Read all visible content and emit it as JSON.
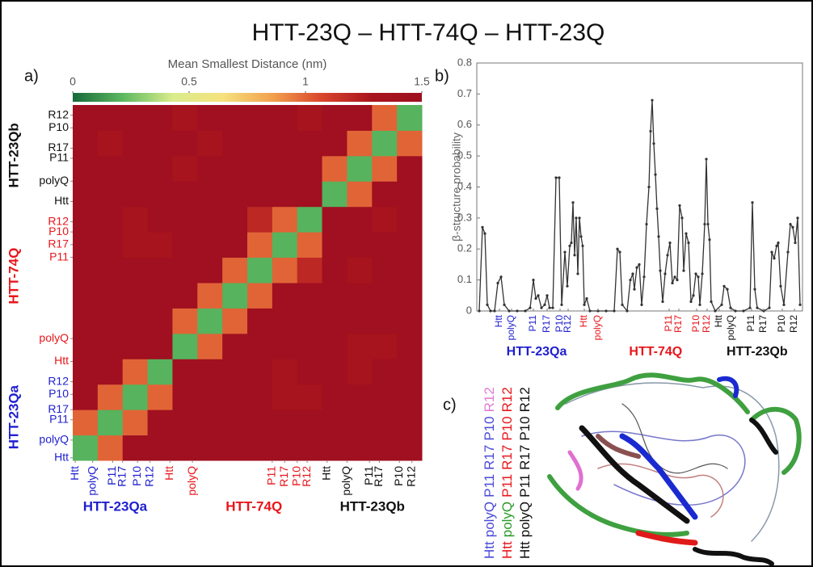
{
  "title": "HTT-23Q – HTT-74Q – HTT-23Q",
  "chart_data": [
    {
      "type": "heatmap",
      "panel_label": "a)",
      "colorbar_title": "Mean Smallest Distance (nm)",
      "zlim": [
        0,
        1.5
      ],
      "zticks": [
        0,
        0.5,
        1,
        1.5
      ],
      "colormap": [
        "#17693a",
        "#5cb860",
        "#d9ec8c",
        "#f6e27e",
        "#f2a14e",
        "#d9452c",
        "#a8141d",
        "#a01020"
      ],
      "lim": [
        0,
        14
      ],
      "groups": [
        {
          "name": "HTT-23Qa",
          "color": "#1f1fd0",
          "ticks": [
            {
              "value": 0.1,
              "label": "Htt"
            },
            {
              "value": 0.8,
              "label": "polyQ"
            },
            {
              "value": 1.6,
              "label": "P11"
            },
            {
              "value": 2.0,
              "label": "R17"
            },
            {
              "value": 2.6,
              "label": "P10"
            },
            {
              "value": 3.1,
              "label": "R12"
            }
          ]
        },
        {
          "name": "HTT-74Q",
          "color": "#e8161b",
          "ticks": [
            {
              "value": 3.9,
              "label": "Htt"
            },
            {
              "value": 4.8,
              "label": "polyQ"
            },
            {
              "value": 8.0,
              "label": "P11"
            },
            {
              "value": 8.5,
              "label": "R17"
            },
            {
              "value": 9.0,
              "label": "P10"
            },
            {
              "value": 9.4,
              "label": "R12"
            }
          ]
        },
        {
          "name": "HTT-23Qb",
          "color": "#111111",
          "ticks": [
            {
              "value": 10.2,
              "label": "Htt"
            },
            {
              "value": 11.0,
              "label": "polyQ"
            },
            {
              "value": 11.9,
              "label": "P11"
            },
            {
              "value": 12.3,
              "label": "R17"
            },
            {
              "value": 13.1,
              "label": "P10"
            },
            {
              "value": 13.6,
              "label": "R12"
            }
          ]
        }
      ],
      "z": [
        [
          0.2,
          1.0,
          1.5,
          1.5,
          1.5,
          1.5,
          1.5,
          1.5,
          1.5,
          1.5,
          1.5,
          1.5,
          1.5,
          1.5
        ],
        [
          1.0,
          0.2,
          1.0,
          1.5,
          1.5,
          1.5,
          1.5,
          1.5,
          1.5,
          1.5,
          1.5,
          1.5,
          1.5,
          1.5
        ],
        [
          1.5,
          1.0,
          0.2,
          1.0,
          1.5,
          1.5,
          1.5,
          1.5,
          1.3,
          1.3,
          1.5,
          1.5,
          1.5,
          1.5
        ],
        [
          1.5,
          1.5,
          1.0,
          0.2,
          1.5,
          1.5,
          1.5,
          1.5,
          1.3,
          1.5,
          1.5,
          1.3,
          1.5,
          1.5
        ],
        [
          1.5,
          1.5,
          1.5,
          1.5,
          0.2,
          1.0,
          1.5,
          1.5,
          1.5,
          1.5,
          1.5,
          1.3,
          1.3,
          1.5
        ],
        [
          1.5,
          1.5,
          1.5,
          1.5,
          1.0,
          0.2,
          1.0,
          1.5,
          1.5,
          1.5,
          1.5,
          1.5,
          1.5,
          1.5
        ],
        [
          1.5,
          1.5,
          1.5,
          1.5,
          1.5,
          1.0,
          0.2,
          1.0,
          1.5,
          1.5,
          1.5,
          1.5,
          1.5,
          1.5
        ],
        [
          1.5,
          1.5,
          1.5,
          1.5,
          1.5,
          1.5,
          1.0,
          0.2,
          1.0,
          1.2,
          1.5,
          1.3,
          1.5,
          1.5
        ],
        [
          1.5,
          1.5,
          1.3,
          1.3,
          1.5,
          1.5,
          1.5,
          1.0,
          0.2,
          1.0,
          1.5,
          1.5,
          1.5,
          1.5
        ],
        [
          1.5,
          1.5,
          1.3,
          1.5,
          1.5,
          1.5,
          1.5,
          1.2,
          1.0,
          0.2,
          1.5,
          1.5,
          1.3,
          1.5
        ],
        [
          1.5,
          1.5,
          1.5,
          1.5,
          1.5,
          1.5,
          1.5,
          1.5,
          1.5,
          1.5,
          0.2,
          1.0,
          1.5,
          1.5
        ],
        [
          1.5,
          1.5,
          1.5,
          1.5,
          1.3,
          1.5,
          1.5,
          1.5,
          1.5,
          1.5,
          1.0,
          0.2,
          1.0,
          1.5
        ],
        [
          1.5,
          1.3,
          1.5,
          1.5,
          1.5,
          1.3,
          1.5,
          1.5,
          1.5,
          1.5,
          1.5,
          1.0,
          0.2,
          1.0
        ],
        [
          1.5,
          1.5,
          1.5,
          1.5,
          1.3,
          1.5,
          1.5,
          1.5,
          1.5,
          1.3,
          1.5,
          1.5,
          1.0,
          0.2
        ]
      ]
    },
    {
      "type": "line",
      "panel_label": "b)",
      "y_label": "β-structure probability",
      "color": "#333333",
      "xlim": [
        0,
        403
      ],
      "ylim": [
        0,
        0.8
      ],
      "yticks": [
        0,
        0.1,
        0.2,
        0.3,
        0.4,
        0.5,
        0.6,
        0.7,
        0.8
      ],
      "groups": [
        {
          "name": "HTT-23Qa",
          "color": "#1f1fd0",
          "ticks": [
            {
              "value": 28,
              "label": "Htt"
            },
            {
              "value": 43,
              "label": "polyQ"
            },
            {
              "value": 70,
              "label": "P11"
            },
            {
              "value": 87,
              "label": "R17"
            },
            {
              "value": 103,
              "label": "P10"
            },
            {
              "value": 113,
              "label": "R12"
            }
          ]
        },
        {
          "name": "HTT-74Q",
          "color": "#e8161b",
          "ticks": [
            {
              "value": 133,
              "label": "Htt"
            },
            {
              "value": 150,
              "label": "polyQ"
            },
            {
              "value": 238,
              "label": "P11"
            },
            {
              "value": 250,
              "label": "R17"
            },
            {
              "value": 272,
              "label": "P10"
            },
            {
              "value": 285,
              "label": "R12"
            }
          ]
        },
        {
          "name": "HTT-23Qb",
          "color": "#111111",
          "ticks": [
            {
              "value": 300,
              "label": "Htt"
            },
            {
              "value": 315,
              "label": "polyQ"
            },
            {
              "value": 340,
              "label": "P11"
            },
            {
              "value": 355,
              "label": "R17"
            },
            {
              "value": 378,
              "label": "P10"
            },
            {
              "value": 393,
              "label": "R12"
            }
          ]
        }
      ],
      "x": [
        3,
        7,
        10,
        13,
        17,
        22,
        26,
        30,
        34,
        40,
        50,
        60,
        66,
        70,
        73,
        76,
        80,
        84,
        87,
        90,
        94,
        98,
        102,
        105,
        109,
        112,
        115,
        117,
        119,
        121,
        123,
        125,
        127,
        129,
        131,
        133,
        136,
        140,
        150,
        160,
        170,
        174,
        177,
        180,
        186,
        190,
        193,
        195,
        198,
        201,
        204,
        207,
        210,
        213,
        215,
        217,
        219,
        221,
        223,
        225,
        227,
        230,
        233,
        236,
        239,
        242,
        245,
        248,
        251,
        254,
        256,
        259,
        262,
        265,
        268,
        271,
        274,
        276,
        279,
        282,
        284,
        286,
        288,
        290,
        295,
        303,
        306,
        310,
        314,
        320,
        330,
        338,
        341,
        344,
        347,
        355,
        362,
        365,
        368,
        371,
        373,
        376,
        380,
        385,
        388,
        391,
        394,
        397,
        400
      ],
      "values": [
        0,
        0.27,
        0.25,
        0.02,
        0,
        0,
        0.09,
        0.11,
        0.02,
        0,
        0,
        0,
        0.01,
        0.1,
        0.04,
        0.05,
        0.01,
        0.02,
        0.05,
        0.01,
        0.01,
        0.43,
        0.43,
        0.02,
        0.19,
        0.08,
        0.21,
        0.22,
        0.35,
        0.18,
        0.3,
        0.12,
        0.3,
        0.24,
        0.21,
        0.02,
        0.04,
        0,
        0,
        0,
        0,
        0.2,
        0.19,
        0.02,
        0,
        0.1,
        0.12,
        0.07,
        0.14,
        0.15,
        0.02,
        0.11,
        0.28,
        0.4,
        0.58,
        0.68,
        0.54,
        0.44,
        0.33,
        0.24,
        0.13,
        0.03,
        0.12,
        0.18,
        0.22,
        0.09,
        0.11,
        0.1,
        0.34,
        0.3,
        0.13,
        0.25,
        0.22,
        0.03,
        0.05,
        0.12,
        0.11,
        0.02,
        0.12,
        0.28,
        0.49,
        0.28,
        0.23,
        0.03,
        0,
        0.02,
        0.08,
        0.07,
        0.01,
        0,
        0,
        0.01,
        0.35,
        0.07,
        0.01,
        0,
        0.01,
        0.19,
        0.17,
        0.21,
        0.22,
        0.08,
        0.02,
        0.19,
        0.28,
        0.27,
        0.22,
        0.3,
        0.02
      ]
    }
  ],
  "panel_c": {
    "label": "c)",
    "legend_lines": [
      [
        {
          "text": "Htt",
          "color": "#4a4ad8"
        },
        {
          "text": "polyQ",
          "color": "#4a4ad8"
        },
        {
          "text": "P11",
          "color": "#4a4ad8"
        },
        {
          "text": "R17",
          "color": "#4a4ad8"
        },
        {
          "text": "P10",
          "color": "#4a4ad8"
        },
        {
          "text": "R12",
          "color": "#e07ad8"
        }
      ],
      [
        {
          "text": "Htt",
          "color": "#e8161b"
        },
        {
          "text": "polyQ",
          "color": "#2a9a2a"
        },
        {
          "text": "P11",
          "color": "#e8161b"
        },
        {
          "text": "R17",
          "color": "#e8161b"
        },
        {
          "text": "P10",
          "color": "#e8161b"
        },
        {
          "text": "R12",
          "color": "#e8161b"
        }
      ],
      [
        {
          "text": "Htt",
          "color": "#111111"
        },
        {
          "text": "polyQ",
          "color": "#111111"
        },
        {
          "text": "P11",
          "color": "#111111"
        },
        {
          "text": "R17",
          "color": "#111111"
        },
        {
          "text": "P10",
          "color": "#111111"
        },
        {
          "text": "R12",
          "color": "#111111"
        }
      ]
    ]
  }
}
